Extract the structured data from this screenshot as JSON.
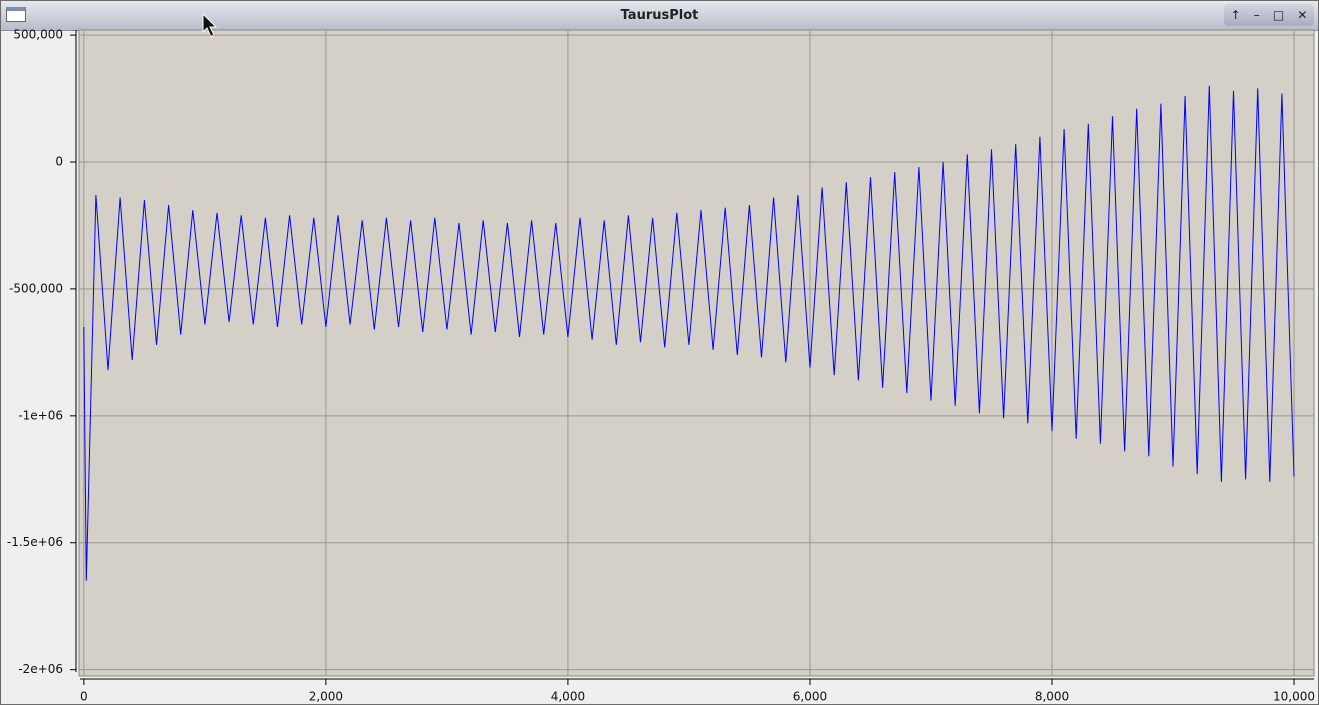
{
  "window_title": "TaurusPlot",
  "chart_data": {
    "type": "line",
    "x": [
      0,
      20,
      100,
      200,
      300,
      400,
      500,
      600,
      700,
      800,
      900,
      1000,
      1100,
      1200,
      1300,
      1400,
      1500,
      1600,
      1700,
      1800,
      1900,
      2000,
      2100,
      2200,
      2300,
      2400,
      2500,
      2600,
      2700,
      2800,
      2900,
      3000,
      3100,
      3200,
      3300,
      3400,
      3500,
      3600,
      3700,
      3800,
      3900,
      4000,
      4100,
      4200,
      4300,
      4400,
      4500,
      4600,
      4700,
      4800,
      4900,
      5000,
      5100,
      5200,
      5300,
      5400,
      5500,
      5600,
      5700,
      5800,
      5900,
      6000,
      6100,
      6200,
      6300,
      6400,
      6500,
      6600,
      6700,
      6800,
      6900,
      7000,
      7100,
      7200,
      7300,
      7400,
      7500,
      7600,
      7700,
      7800,
      7900,
      8000,
      8100,
      8200,
      8300,
      8400,
      8500,
      8600,
      8700,
      8800,
      8900,
      9000,
      9100,
      9200,
      9300,
      9400,
      9500,
      9600,
      9700,
      9800,
      9900,
      10000
    ],
    "series": [
      {
        "color": "#0000ff",
        "values": [
          -650000,
          -1650000,
          -130000,
          -820000,
          -140000,
          -780000,
          -150000,
          -720000,
          -170000,
          -680000,
          -190000,
          -640000,
          -200000,
          -630000,
          -210000,
          -640000,
          -220000,
          -650000,
          -210000,
          -640000,
          -220000,
          -650000,
          -210000,
          -640000,
          -230000,
          -660000,
          -220000,
          -650000,
          -230000,
          -670000,
          -220000,
          -660000,
          -240000,
          -680000,
          -230000,
          -670000,
          -240000,
          -690000,
          -230000,
          -680000,
          -240000,
          -690000,
          -220000,
          -700000,
          -230000,
          -720000,
          -210000,
          -710000,
          -220000,
          -730000,
          -200000,
          -720000,
          -190000,
          -740000,
          -180000,
          -760000,
          -170000,
          -770000,
          -140000,
          -790000,
          -130000,
          -810000,
          -100000,
          -840000,
          -80000,
          -860000,
          -60000,
          -890000,
          -40000,
          -910000,
          -20000,
          -940000,
          0,
          -960000,
          30000,
          -990000,
          50000,
          -1010000,
          70000,
          -1030000,
          100000,
          -1060000,
          130000,
          -1090000,
          150000,
          -1110000,
          180000,
          -1140000,
          210000,
          -1160000,
          230000,
          -1200000,
          260000,
          -1230000,
          300000,
          -1260000,
          280000,
          -1250000,
          290000,
          -1260000,
          270000,
          -1240000
        ]
      }
    ],
    "xlim": [
      -40,
      10165
    ],
    "ylim": [
      -2025000,
      520000
    ],
    "xticks": [
      0,
      {
        "value": 2000,
        "label": "2,000"
      },
      {
        "value": 4000,
        "label": "4,000"
      },
      {
        "value": 6000,
        "label": "6,000"
      },
      {
        "value": 8000,
        "label": "8,000"
      },
      {
        "value": 10000,
        "label": "10,000"
      }
    ],
    "yticks": [
      {
        "value": 500000,
        "label": "500,000"
      },
      0,
      {
        "value": -500000,
        "label": "-500,000"
      },
      {
        "value": -1000000,
        "label": "-1e+06"
      },
      {
        "value": -1500000,
        "label": "-1.5e+06"
      },
      {
        "value": -2000000,
        "label": "-2e+06"
      }
    ],
    "grid": true
  }
}
